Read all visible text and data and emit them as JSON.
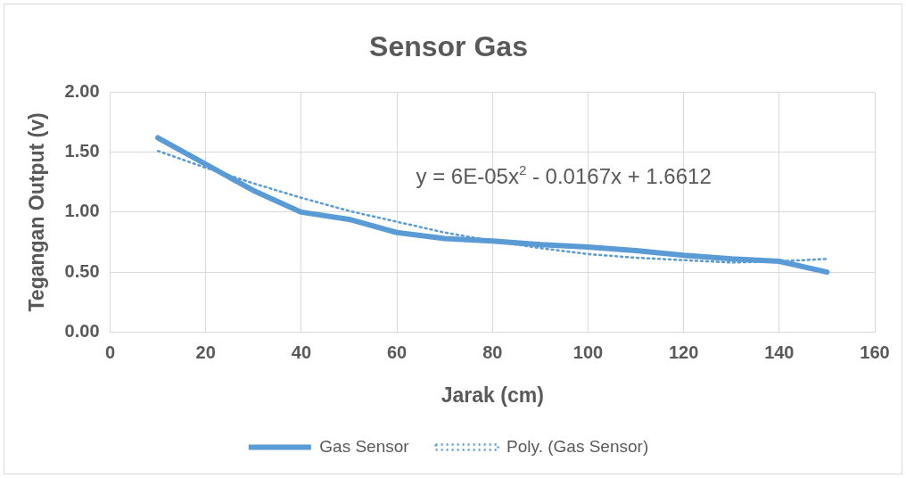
{
  "chart_data": {
    "type": "line",
    "title": "Sensor Gas",
    "xlabel": "Jarak (cm)",
    "ylabel": "Tegangan Output (v)",
    "xlim": [
      0,
      160
    ],
    "xticks": [
      0,
      20,
      40,
      60,
      80,
      100,
      120,
      140,
      160
    ],
    "ylim": [
      0,
      2
    ],
    "yticks": [
      {
        "value": 0,
        "label": "0.00"
      },
      {
        "value": 0.5,
        "label": "0.50"
      },
      {
        "value": 1,
        "label": "1.00"
      },
      {
        "value": 1.5,
        "label": "1.50"
      },
      {
        "value": 2,
        "label": "2.00"
      }
    ],
    "grid": true,
    "legend": "bottom",
    "marker": "none",
    "annotations": [
      "y = 6E-05x$^{2}$ - 0.0167x + 1.6612"
    ],
    "series": [
      {
        "name": "Gas Sensor",
        "color": "#5b9bd5",
        "line_style": "solid",
        "x": [
          10,
          20,
          30,
          40,
          50,
          60,
          70,
          80,
          90,
          100,
          110,
          120,
          130,
          140,
          150
        ],
        "values": [
          1.62,
          1.4,
          1.18,
          1.0,
          0.94,
          0.83,
          0.78,
          0.76,
          0.73,
          0.71,
          0.68,
          0.64,
          0.61,
          0.59,
          0.5
        ]
      },
      {
        "name": "Poly. (Gas Sensor)",
        "color": "#5b9bd5",
        "line_style": "dotted",
        "x": [
          10,
          20,
          30,
          40,
          50,
          60,
          70,
          80,
          90,
          100,
          110,
          120,
          130,
          140,
          150
        ],
        "values": [
          1.51,
          1.37,
          1.24,
          1.12,
          1.01,
          0.92,
          0.83,
          0.76,
          0.7,
          0.65,
          0.62,
          0.6,
          0.58,
          0.59,
          0.61
        ]
      }
    ]
  }
}
